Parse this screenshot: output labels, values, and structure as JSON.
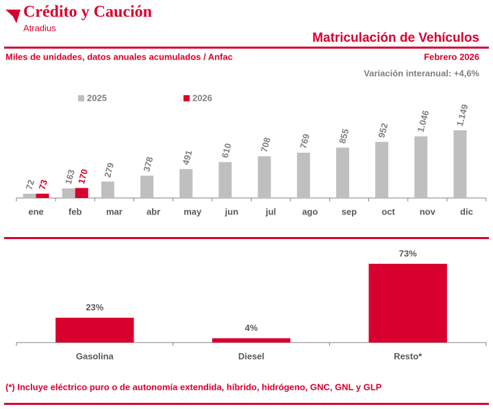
{
  "header": {
    "brand": "Crédito y Caución",
    "brand_sub": "Atradius",
    "title": "Matriculación de Vehículos",
    "subtitle": "Miles de unidades, datos anuales acumulados / Anfac",
    "date": "Febrero 2026",
    "variation": "Variación interanual: +4,6%"
  },
  "chart_data": [
    {
      "type": "bar",
      "categories": [
        "ene",
        "feb",
        "mar",
        "abr",
        "may",
        "jun",
        "jul",
        "ago",
        "sep",
        "oct",
        "nov",
        "dic"
      ],
      "series": [
        {
          "name": "2025",
          "color": "#bfbfbf",
          "values": [
            72,
            163,
            279,
            378,
            491,
            610,
            708,
            769,
            855,
            952,
            1046,
            1149
          ],
          "value_labels": [
            "72",
            "163",
            "279",
            "378",
            "491",
            "610",
            "708",
            "769",
            "855",
            "952",
            "1.046",
            "1.149"
          ]
        },
        {
          "name": "2026",
          "color": "#d8002e",
          "values": [
            73,
            170,
            null,
            null,
            null,
            null,
            null,
            null,
            null,
            null,
            null,
            null
          ],
          "value_labels": [
            "73",
            "170",
            null,
            null,
            null,
            null,
            null,
            null,
            null,
            null,
            null,
            null
          ]
        }
      ],
      "ylim": [
        0,
        1500
      ]
    },
    {
      "type": "bar",
      "categories": [
        "Gasolina",
        "Diesel",
        "Resto*"
      ],
      "values": [
        23,
        4,
        73
      ],
      "value_labels": [
        "23%",
        "4%",
        "73%"
      ],
      "color": "#d8002e",
      "ylim": [
        0,
        80
      ]
    }
  ],
  "footnote": "(*) Incluye eléctrico puro o de autonomía extendida, híbrido, hidrógeno, GNC, GNL y GLP"
}
